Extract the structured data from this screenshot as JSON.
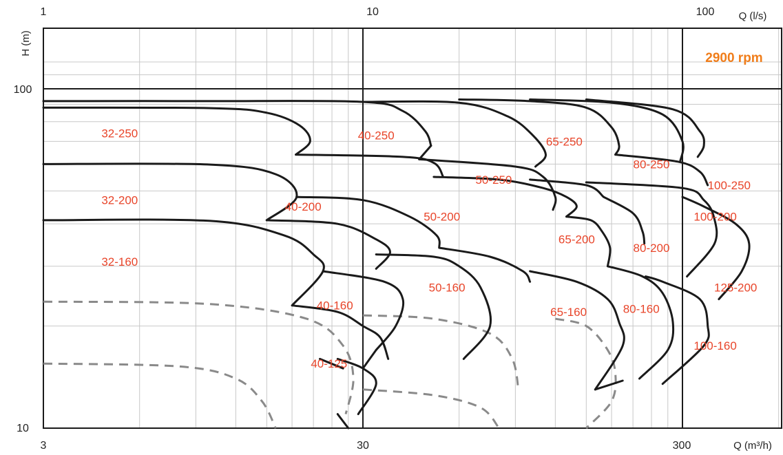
{
  "chart_data": {
    "type": "line",
    "title": "",
    "speed_label": "2900 rpm",
    "x_scale": "log",
    "y_scale": "log",
    "grid": true,
    "xlabel_bottom": "Q (m³/h)",
    "xlabel_top": "Q (l/s)",
    "ylabel": "H (m)",
    "xlim_m3h": [
      3,
      600
    ],
    "ylim_m": [
      10,
      120
    ],
    "ticks": {
      "x_bottom": [
        3,
        30,
        300
      ],
      "x_bottom_labels": [
        "3",
        "30",
        "300"
      ],
      "x_top": [
        1,
        10,
        100
      ],
      "x_top_labels": [
        "1",
        "10",
        "100"
      ],
      "y": [
        10,
        100
      ],
      "y_labels": [
        "10",
        "100"
      ]
    },
    "models": [
      {
        "name": "32-250",
        "label_at": [
          5.2,
          74
        ]
      },
      {
        "name": "40-250",
        "label_at": [
          33,
          73
        ]
      },
      {
        "name": "50-250",
        "label_at": [
          77,
          54
        ]
      },
      {
        "name": "65-250",
        "label_at": [
          128,
          70
        ]
      },
      {
        "name": "80-250",
        "label_at": [
          240,
          60
        ]
      },
      {
        "name": "100-250",
        "label_at": [
          420,
          52
        ]
      },
      {
        "name": "32-200",
        "label_at": [
          5.2,
          47
        ]
      },
      {
        "name": "40-200",
        "label_at": [
          19.5,
          45
        ]
      },
      {
        "name": "50-200",
        "label_at": [
          53,
          42
        ]
      },
      {
        "name": "65-200",
        "label_at": [
          140,
          36
        ]
      },
      {
        "name": "80-200",
        "label_at": [
          240,
          34
        ]
      },
      {
        "name": "100-200",
        "label_at": [
          380,
          42
        ]
      },
      {
        "name": "32-160",
        "label_at": [
          5.2,
          31
        ]
      },
      {
        "name": "40-160",
        "label_at": [
          24.5,
          23
        ]
      },
      {
        "name": "50-160",
        "label_at": [
          55,
          26
        ]
      },
      {
        "name": "65-160",
        "label_at": [
          132,
          22
        ]
      },
      {
        "name": "80-160",
        "label_at": [
          223,
          22.5
        ]
      },
      {
        "name": "100-160",
        "label_at": [
          380,
          17.5
        ]
      },
      {
        "name": "125-200",
        "label_at": [
          440,
          26
        ]
      },
      {
        "name": "40-125",
        "label_at": [
          23.5,
          15.5
        ]
      }
    ],
    "envelopes": [
      {
        "points": [
          [
            3,
            88
          ],
          [
            10,
            87.7
          ],
          [
            15,
            85
          ],
          [
            19,
            78
          ],
          [
            20.5,
            70
          ],
          [
            18.5,
            64
          ]
        ]
      },
      {
        "points": [
          [
            18.5,
            64
          ],
          [
            40,
            63
          ],
          [
            50,
            60.5
          ],
          [
            53.5,
            55
          ]
        ]
      },
      {
        "points": [
          [
            3,
            92
          ],
          [
            10,
            92
          ],
          [
            30,
            91.5
          ],
          [
            40,
            86
          ],
          [
            47,
            75
          ],
          [
            49,
            68
          ]
        ]
      },
      {
        "points": [
          [
            49,
            68
          ],
          [
            45,
            62
          ]
        ]
      },
      {
        "points": [
          [
            45,
            62
          ],
          [
            90,
            59
          ],
          [
            110,
            55
          ],
          [
            120,
            48
          ],
          [
            118,
            44
          ]
        ]
      },
      {
        "points": [
          [
            30,
            91.5
          ],
          [
            60,
            91
          ],
          [
            85,
            83
          ],
          [
            102,
            73
          ],
          [
            112,
            64
          ],
          [
            104,
            59
          ]
        ]
      },
      {
        "points": [
          [
            60,
            93
          ],
          [
            100,
            92
          ],
          [
            150,
            88
          ],
          [
            180,
            77
          ],
          [
            190,
            68
          ],
          [
            185,
            64
          ]
        ]
      },
      {
        "points": [
          [
            100,
            93
          ],
          [
            180,
            91
          ],
          [
            260,
            84
          ],
          [
            300,
            70
          ],
          [
            295,
            61
          ]
        ]
      },
      {
        "points": [
          [
            150,
            93
          ],
          [
            280,
            87
          ],
          [
            340,
            75
          ],
          [
            350,
            68
          ],
          [
            335,
            63
          ]
        ]
      },
      {
        "points": [
          [
            185,
            64
          ],
          [
            290,
            61
          ],
          [
            340,
            57
          ],
          [
            360,
            52
          ]
        ]
      },
      {
        "points": [
          [
            3,
            60
          ],
          [
            10,
            59.8
          ],
          [
            16,
            56
          ],
          [
            18.6,
            48
          ],
          [
            15,
            41
          ]
        ]
      },
      {
        "points": [
          [
            15,
            41
          ],
          [
            25,
            40
          ],
          [
            33,
            36
          ],
          [
            36.5,
            33
          ],
          [
            33,
            29.5
          ]
        ]
      },
      {
        "points": [
          [
            18.6,
            48
          ],
          [
            30,
            47
          ],
          [
            42,
            42
          ],
          [
            51,
            37
          ],
          [
            52,
            34
          ]
        ]
      },
      {
        "points": [
          [
            50,
            55
          ],
          [
            80,
            54
          ],
          [
            110,
            51
          ],
          [
            130,
            48
          ],
          [
            140,
            45
          ],
          [
            130,
            42
          ]
        ]
      },
      {
        "points": [
          [
            130,
            42
          ],
          [
            155,
            41
          ],
          [
            168,
            38
          ],
          [
            178,
            34
          ],
          [
            175,
            30
          ]
        ]
      },
      {
        "points": [
          [
            100,
            54
          ],
          [
            150,
            52
          ],
          [
            170,
            48
          ]
        ]
      },
      {
        "points": [
          [
            170,
            48
          ],
          [
            210,
            43
          ],
          [
            225,
            38
          ],
          [
            228,
            35
          ]
        ]
      },
      {
        "points": [
          [
            150,
            53
          ],
          [
            300,
            51
          ],
          [
            350,
            47
          ],
          [
            376,
            42
          ],
          [
            378,
            35
          ],
          [
            310,
            28
          ]
        ]
      },
      {
        "points": [
          [
            300,
            48
          ],
          [
            350,
            45
          ],
          [
            440,
            40
          ],
          [
            485,
            35
          ],
          [
            460,
            29
          ],
          [
            390,
            24
          ]
        ]
      },
      {
        "points": [
          [
            3,
            41
          ],
          [
            10,
            40.8
          ],
          [
            17,
            37
          ],
          [
            21,
            32.5
          ],
          [
            22.5,
            29
          ],
          [
            18,
            23
          ]
        ]
      },
      {
        "points": [
          [
            18,
            23
          ],
          [
            25,
            22
          ],
          [
            30,
            20
          ],
          [
            34,
            18.5
          ],
          [
            36,
            16
          ]
        ]
      },
      {
        "points": [
          [
            22.5,
            29
          ],
          [
            35,
            27
          ],
          [
            40,
            24
          ],
          [
            38,
            20
          ],
          [
            33,
            17
          ]
        ]
      },
      {
        "points": [
          [
            33,
            17
          ],
          [
            30,
            15
          ]
        ]
      },
      {
        "points": [
          [
            33,
            32.5
          ],
          [
            50,
            32
          ],
          [
            60,
            30
          ],
          [
            70,
            26
          ],
          [
            75,
            20
          ],
          [
            62,
            16
          ]
        ]
      },
      {
        "points": [
          [
            52,
            34
          ],
          [
            75,
            32
          ],
          [
            95,
            29
          ],
          [
            100,
            27
          ]
        ]
      },
      {
        "points": [
          [
            100,
            29
          ],
          [
            140,
            27
          ],
          [
            175,
            24
          ],
          [
            190,
            20.5
          ],
          [
            195,
            17.5
          ],
          [
            160,
            13
          ]
        ]
      },
      {
        "points": [
          [
            160,
            13
          ],
          [
            195,
            13.8
          ]
        ]
      },
      {
        "points": [
          [
            175,
            30
          ],
          [
            225,
            28
          ],
          [
            260,
            25
          ],
          [
            280,
            20.5
          ],
          [
            270,
            17
          ],
          [
            220,
            14
          ]
        ]
      },
      {
        "points": [
          [
            230,
            28
          ],
          [
            260,
            27
          ],
          [
            340,
            24
          ],
          [
            360,
            20
          ],
          [
            350,
            17.5
          ],
          [
            260,
            13.5
          ]
        ]
      },
      {
        "points": [
          [
            25,
            16
          ],
          [
            30,
            15
          ],
          [
            33,
            13.5
          ],
          [
            29,
            11
          ]
        ]
      },
      {
        "points": [
          [
            25,
            11
          ],
          [
            27,
            10
          ]
        ]
      },
      {
        "points": [
          [
            22,
            16
          ],
          [
            26,
            15
          ]
        ]
      }
    ],
    "dashed_curves": [
      {
        "points": [
          [
            3,
            23.6
          ],
          [
            10,
            23.2
          ],
          [
            20,
            21
          ],
          [
            26,
            17.5
          ],
          [
            28,
            14
          ],
          [
            26.5,
            11
          ]
        ]
      },
      {
        "points": [
          [
            3,
            15.5
          ],
          [
            8,
            15.2
          ],
          [
            12,
            14
          ],
          [
            14.5,
            12
          ],
          [
            16,
            10
          ]
        ]
      },
      {
        "points": [
          [
            30,
            21.5
          ],
          [
            50,
            21
          ],
          [
            75,
            19
          ],
          [
            88,
            16
          ],
          [
            92,
            13
          ]
        ]
      },
      {
        "points": [
          [
            30,
            13
          ],
          [
            50,
            12.5
          ],
          [
            70,
            11.5
          ],
          [
            80,
            10
          ]
        ]
      },
      {
        "points": [
          [
            120,
            21
          ],
          [
            150,
            20
          ],
          [
            175,
            17
          ],
          [
            185,
            14.5
          ],
          [
            180,
            12
          ],
          [
            150,
            10
          ]
        ]
      }
    ]
  }
}
